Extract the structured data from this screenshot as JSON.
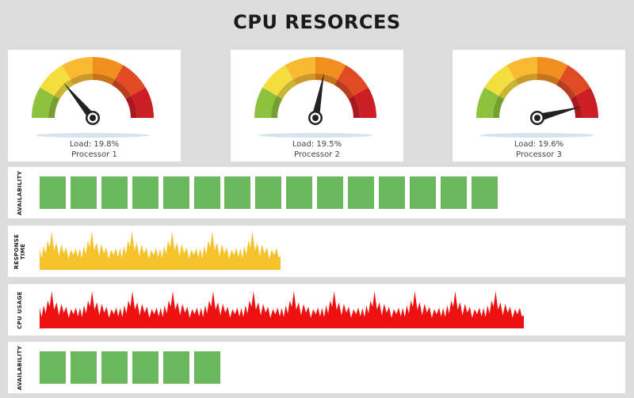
{
  "title": "CPU RESORCES",
  "colors": {
    "background": "#dcdcdc",
    "panel": "#ffffff",
    "availability_block": "#6ab75e",
    "response_time_fill": "#f6c22b",
    "cpu_usage_fill": "#ee1111",
    "gauge_bands": [
      "#8fc23c",
      "#f4de3e",
      "#f9b932",
      "#f28e1e",
      "#e04b24",
      "#cc1e24"
    ]
  },
  "gauges": [
    {
      "load_label": "Load: 19.8%",
      "name": "Processor 1",
      "needle_fraction": 0.28
    },
    {
      "load_label": "Load: 19.5%",
      "name": "Processor 2",
      "needle_fraction": 0.56
    },
    {
      "load_label": "Load: 19.6%",
      "name": "Processor 3",
      "needle_fraction": 0.92
    }
  ],
  "strips": [
    {
      "label": "AVAILABILITY",
      "type": "blocks",
      "block_count": 15
    },
    {
      "label": "RESPONSE TIME",
      "label_lines": [
        "RESPONSE",
        "TIME"
      ],
      "type": "area",
      "color_key": "response_time_fill",
      "peak_count": 6
    },
    {
      "label": "CPU USAGE",
      "type": "area",
      "color_key": "cpu_usage_fill",
      "peak_count": 12
    },
    {
      "label": "AVAILABILITY",
      "type": "blocks",
      "block_count": 6
    }
  ]
}
